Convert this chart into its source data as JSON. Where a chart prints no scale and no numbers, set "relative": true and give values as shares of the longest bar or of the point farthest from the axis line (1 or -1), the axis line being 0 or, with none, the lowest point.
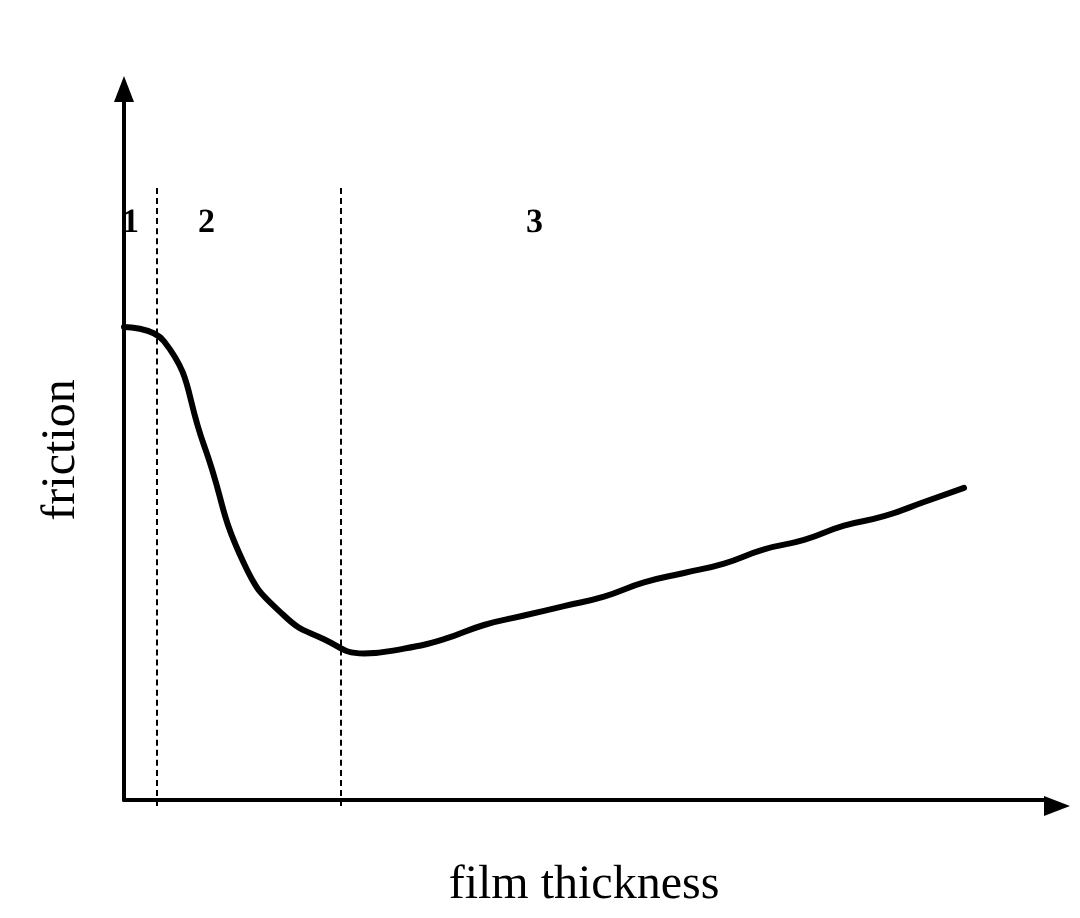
{
  "chart_data": {
    "type": "line",
    "relative": true,
    "xlabel": "film thickness",
    "ylabel": "friction",
    "categories": [
      null,
      null,
      null,
      null,
      null,
      null,
      null,
      null,
      null,
      null,
      null,
      null,
      null,
      null,
      null,
      null,
      null,
      null,
      null,
      null,
      null,
      null,
      null,
      null
    ],
    "series": [
      {
        "color": "#000000",
        "values": [
          1,
          0.97,
          0.75,
          0.5,
          0.39,
          0.34,
          0.31,
          0.32,
          0.34,
          0.37,
          0.39,
          0.41,
          0.43,
          0.46,
          0.48,
          0.5,
          0.53,
          0.55,
          0.58,
          0.6,
          0.63,
          0.66,
          null,
          null
        ]
      }
    ],
    "annotations": [
      "1",
      "2",
      "3"
    ],
    "marker": "none",
    "line_style": "solid",
    "grid": false
  }
}
